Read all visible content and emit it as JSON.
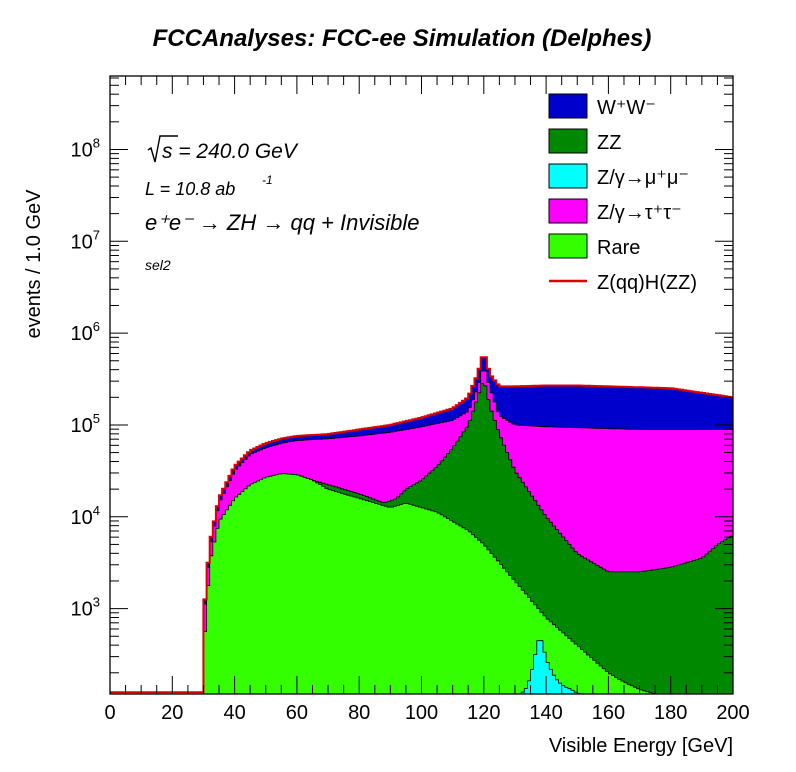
{
  "chart_data": {
    "type": "area",
    "title": "FCCAnalyses: FCC-ee Simulation (Delphes)",
    "xlabel": "Visible Energy [GeV]",
    "ylabel": "events / 1.0 GeV",
    "xlim": [
      0,
      200
    ],
    "ylim_log10": [
      2.07,
      8.8
    ],
    "y_scale": "log",
    "x_ticks": [
      "0",
      "20",
      "40",
      "60",
      "80",
      "100",
      "120",
      "140",
      "160",
      "180",
      "200"
    ],
    "y_ticks": [
      {
        "base": "10",
        "exp": "3",
        "log": 3
      },
      {
        "base": "10",
        "exp": "4",
        "log": 4
      },
      {
        "base": "10",
        "exp": "5",
        "log": 5
      },
      {
        "base": "10",
        "exp": "6",
        "log": 6
      },
      {
        "base": "10",
        "exp": "7",
        "log": 7
      },
      {
        "base": "10",
        "exp": "8",
        "log": 8
      }
    ],
    "annotations": {
      "sqrt_s": "s = 240.0 GeV",
      "lumi": "L = 10.8 ab",
      "lumi_exp": "-1",
      "process": "e⁺e⁻ → ZH → qq + Invisible",
      "selection": "sel2"
    },
    "legend_position": "top-right",
    "series": [
      {
        "name": "W⁺W⁻",
        "color": "#0000cc",
        "stack_level": 5,
        "x": [
          30,
          32,
          35,
          40,
          45,
          50,
          55,
          60,
          70,
          80,
          90,
          100,
          110,
          115,
          118,
          120,
          122,
          125,
          130,
          140,
          150,
          160,
          170,
          180,
          190,
          200
        ],
        "log10_total": [
          2.9,
          3.7,
          4.2,
          4.55,
          4.72,
          4.8,
          4.85,
          4.88,
          4.9,
          4.95,
          5.0,
          5.08,
          5.18,
          5.3,
          5.55,
          5.8,
          5.55,
          5.42,
          5.42,
          5.43,
          5.43,
          5.42,
          5.41,
          5.4,
          5.35,
          5.3
        ]
      },
      {
        "name": "ZZ",
        "color": "#008800",
        "stack_level": 2,
        "x": [
          30,
          40,
          60,
          80,
          88,
          92,
          95,
          100,
          105,
          110,
          115,
          118,
          120,
          122,
          125,
          130,
          140,
          150,
          160,
          170,
          180,
          190,
          195,
          200
        ],
        "log10_total": [
          2.5,
          4.0,
          4.45,
          4.25,
          4.15,
          4.2,
          4.3,
          4.4,
          4.55,
          4.75,
          5.0,
          5.3,
          5.5,
          5.2,
          4.9,
          4.5,
          4.0,
          3.6,
          3.4,
          3.4,
          3.45,
          3.55,
          3.7,
          3.8
        ]
      },
      {
        "name": "Z/γ→μ⁺μ⁻",
        "color": "#00ffff",
        "stack_level": 3,
        "x": [
          132,
          134,
          136,
          137,
          138,
          139,
          140,
          142,
          144,
          146,
          148,
          150,
          152
        ],
        "log10_total": [
          2.07,
          2.15,
          2.4,
          2.6,
          2.7,
          2.6,
          2.45,
          2.3,
          2.2,
          2.15,
          2.12,
          2.08,
          2.07
        ]
      },
      {
        "name": "Z/γ→τ⁺τ⁻",
        "color": "#ff00ff",
        "stack_level": 4,
        "x": [
          30,
          32,
          35,
          40,
          45,
          50,
          55,
          60,
          70,
          80,
          90,
          100,
          110,
          115,
          118,
          120,
          122,
          125,
          130,
          140,
          150,
          160,
          170,
          180,
          190,
          200
        ],
        "log10_total": [
          2.85,
          3.65,
          4.15,
          4.5,
          4.68,
          4.75,
          4.8,
          4.83,
          4.85,
          4.88,
          4.92,
          4.98,
          5.05,
          5.15,
          5.4,
          5.65,
          5.4,
          5.1,
          5.0,
          4.98,
          4.97,
          4.96,
          4.95,
          4.95,
          4.95,
          4.95
        ]
      },
      {
        "name": "Rare",
        "color": "#33ff00",
        "stack_level": 1,
        "x": [
          30,
          32,
          35,
          40,
          45,
          50,
          55,
          60,
          65,
          70,
          75,
          80,
          85,
          90,
          95,
          100,
          105,
          110,
          115,
          120,
          125,
          130,
          135,
          140,
          145,
          150,
          155,
          160,
          165,
          170,
          175
        ],
        "log10_total": [
          2.5,
          3.5,
          3.95,
          4.2,
          4.35,
          4.43,
          4.47,
          4.46,
          4.4,
          4.3,
          4.25,
          4.2,
          4.15,
          4.1,
          4.15,
          4.1,
          4.05,
          3.95,
          3.85,
          3.7,
          3.5,
          3.3,
          3.1,
          2.9,
          2.75,
          2.6,
          2.45,
          2.3,
          2.2,
          2.12,
          2.07
        ]
      },
      {
        "name": "Z(qq)H(ZZ)",
        "color": "#dd0000",
        "line_only": true
      }
    ]
  }
}
